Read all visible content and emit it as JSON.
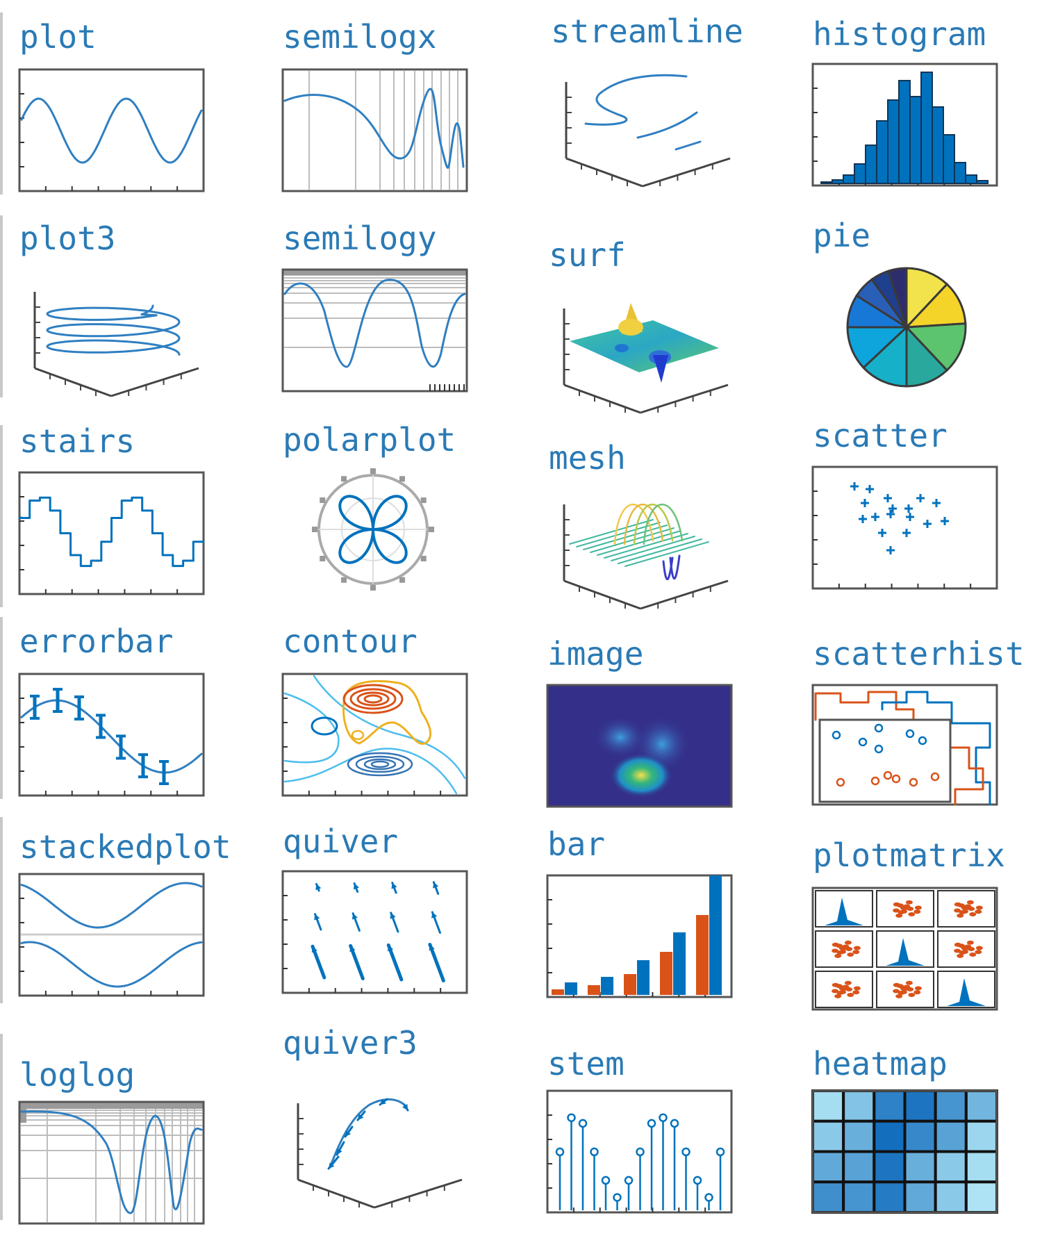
{
  "colors": {
    "label": "#2a7ab5",
    "line": "#2f7fc1",
    "blue": "#0072bd",
    "orange": "#d95319",
    "yellow": "#edb120",
    "lightblue": "#4dbeee",
    "frame": "#555555",
    "grid": "#bdbdbd"
  },
  "items": [
    {
      "name": "plot"
    },
    {
      "name": "semilogx"
    },
    {
      "name": "streamline"
    },
    {
      "name": "histogram"
    },
    {
      "name": "plot3"
    },
    {
      "name": "semilogy"
    },
    {
      "name": "surf"
    },
    {
      "name": "pie"
    },
    {
      "name": "stairs"
    },
    {
      "name": "polarplot"
    },
    {
      "name": "mesh"
    },
    {
      "name": "scatter"
    },
    {
      "name": "errorbar"
    },
    {
      "name": "contour"
    },
    {
      "name": "image"
    },
    {
      "name": "scatterhist"
    },
    {
      "name": "stackedplot"
    },
    {
      "name": "quiver"
    },
    {
      "name": "bar"
    },
    {
      "name": "plotmatrix"
    },
    {
      "name": "loglog"
    },
    {
      "name": "quiver3"
    },
    {
      "name": "stem"
    },
    {
      "name": "heatmap"
    }
  ]
}
